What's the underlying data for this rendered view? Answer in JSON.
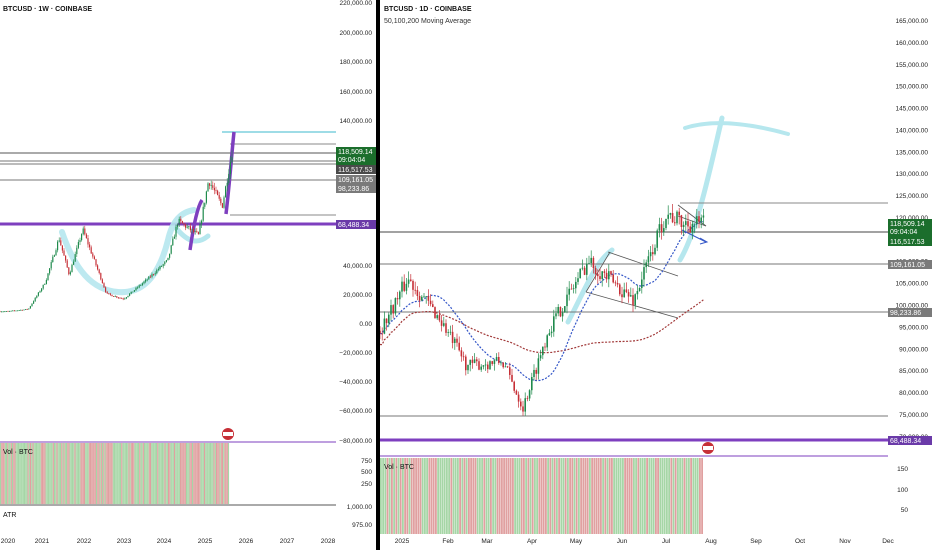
{
  "colors": {
    "purple": "#7e3fbf",
    "cyan_line": "#7fd0dd",
    "cyan_highlight": "#b6e7ee",
    "up": "#1f8a4c",
    "down": "#c62f36",
    "ma_blue": "#3557c8",
    "ma_red": "#a23a3a",
    "last_price_bg": "#1b6e2c",
    "gray_label_bg": "#7a7a7a",
    "dark_label_bg": "#4a4a4a",
    "vol_up": "#a6d6a6",
    "vol_down": "#e0a0a0"
  },
  "left": {
    "title": "BTCUSD · 1W · COINBASE",
    "vol_label": "Vol · BTC",
    "atr_label": "ATR",
    "price_labels": {
      "p1": "118,509.14",
      "countdown": "09:04:04",
      "p2": "116,517.53",
      "p3": "109,161.05",
      "p4": "98,233.86",
      "p5": "68,488.34"
    }
  },
  "right": {
    "title": "BTCUSD · 1D · COINBASE",
    "subtitle": "50,100,200 Moving Average",
    "vol_label": "Vol · BTC",
    "price_labels": {
      "p1": "118,509.14",
      "countdown": "09:04:04",
      "p2": "116,517.53",
      "p3": "109,161.05",
      "p4": "98,233.86",
      "p5": "68,488.34"
    }
  },
  "chart_data": [
    {
      "type": "candlestick",
      "title": "BTCUSD · 1W · COINBASE",
      "x_tick_labels": [
        "2020",
        "2021",
        "2022",
        "2023",
        "2024",
        "2025",
        "2026",
        "2027",
        "2028"
      ],
      "y_tick_labels": [
        "220,000.00",
        "200,000.00",
        "180,000.00",
        "160,000.00",
        "140,000.00",
        "40,000.00",
        "20,000.00",
        "0.00",
        "−20,000.00",
        "−40,000.00",
        "−60,000.00",
        "−80,000.00"
      ],
      "vol_tick_labels": [
        "750",
        "500",
        "250"
      ],
      "atr_tick_labels": [
        "1,000.00",
        "975.00"
      ],
      "horizontal_levels": [
        118509.14,
        116517.53,
        109161.05,
        98233.86,
        68488.34
      ],
      "approx_close": [
        [
          "2020-01",
          8000
        ],
        [
          "2020-07",
          9500
        ],
        [
          "2020-12",
          28000
        ],
        [
          "2021-04",
          58000
        ],
        [
          "2021-07",
          33000
        ],
        [
          "2021-11",
          64000
        ],
        [
          "2022-06",
          20000
        ],
        [
          "2022-11",
          16500
        ],
        [
          "2023-06",
          30000
        ],
        [
          "2023-12",
          43000
        ],
        [
          "2024-03",
          70000
        ],
        [
          "2024-09",
          60000
        ],
        [
          "2024-12",
          98000
        ],
        [
          "2025-04",
          80000
        ],
        [
          "2025-07",
          118509.14
        ]
      ]
    },
    {
      "type": "candlestick",
      "title": "BTCUSD · 1D · COINBASE",
      "subtitle": "50,100,200 Moving Average",
      "x_tick_labels": [
        "2025",
        "Feb",
        "Mar",
        "Apr",
        "May",
        "Jun",
        "Jul",
        "Aug",
        "Sep",
        "Oct",
        "Nov",
        "Dec"
      ],
      "y_tick_labels": [
        "165,000.00",
        "160,000.00",
        "155,000.00",
        "150,000.00",
        "145,000.00",
        "140,000.00",
        "135,000.00",
        "130,000.00",
        "125,000.00",
        "120,000.00",
        "110,000.00",
        "105,000.00",
        "100,000.00",
        "95,000.00",
        "90,000.00",
        "85,000.00",
        "80,000.00",
        "75,000.00",
        "70,000.00"
      ],
      "vol_tick_labels": [
        "150",
        "100",
        "50"
      ],
      "horizontal_levels": [
        122800,
        116517.53,
        109161.05,
        98233.86,
        74500,
        68488.34
      ],
      "approx_close": [
        [
          "2025-01-01",
          94000
        ],
        [
          "2025-01-20",
          106000
        ],
        [
          "2025-02-10",
          97000
        ],
        [
          "2025-03-01",
          86000
        ],
        [
          "2025-03-25",
          87000
        ],
        [
          "2025-04-08",
          76500
        ],
        [
          "2025-04-25",
          94000
        ],
        [
          "2025-05-22",
          110000
        ],
        [
          "2025-06-22",
          101000
        ],
        [
          "2025-07-14",
          121000
        ],
        [
          "2025-07-25",
          118509.14
        ]
      ]
    }
  ]
}
